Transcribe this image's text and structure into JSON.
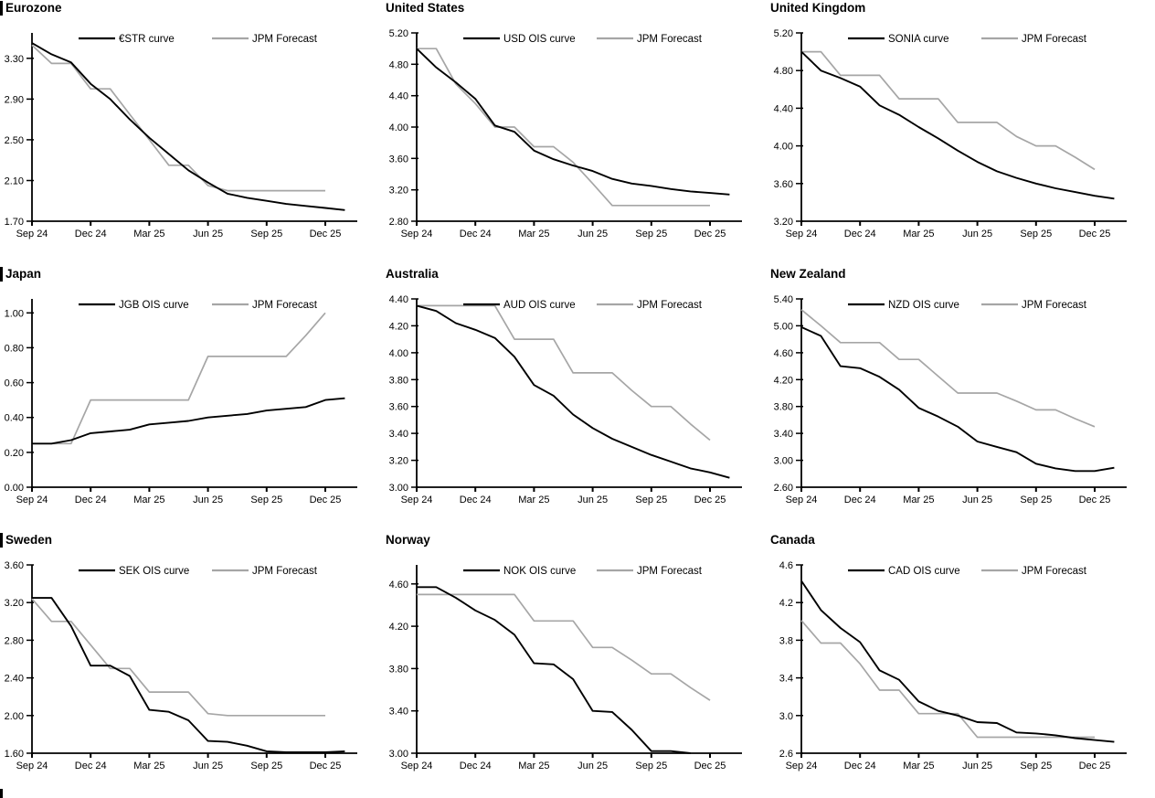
{
  "page": {
    "background": "#ffffff"
  },
  "colors": {
    "actual_line": "#000000",
    "forecast_line": "#a6a6a6",
    "axis": "#000000",
    "text": "#000000"
  },
  "x_months": [
    "Sep 24",
    "Oct 24",
    "Nov 24",
    "Dec 24",
    "Jan 25",
    "Feb 25",
    "Mar 25",
    "Apr 25",
    "May 25",
    "Jun 25",
    "Jul 25",
    "Aug 25",
    "Sep 25",
    "Oct 25",
    "Nov 25",
    "Dec 25",
    "Jan 26"
  ],
  "x_tick_labels": [
    "Sep 24",
    "Dec 24",
    "Mar 25",
    "Jun 25",
    "Sep 25",
    "Dec 25"
  ],
  "x_tick_months": [
    0,
    3,
    6,
    9,
    12,
    15
  ],
  "chart_data": [
    {
      "type": "line",
      "title": "Eurozone",
      "section_bar": true,
      "legend": [
        "€STR curve",
        "JPM Forecast"
      ],
      "y_tick_labels": [
        "3.30",
        "2.90",
        "2.50",
        "2.10",
        "1.70"
      ],
      "ylim": [
        1.7,
        3.55
      ],
      "series": [
        {
          "name": "€STR curve",
          "role": "actual",
          "values": [
            3.45,
            3.34,
            3.26,
            3.05,
            2.9,
            2.7,
            2.52,
            2.36,
            2.2,
            2.08,
            1.97,
            1.93,
            1.9,
            1.87,
            1.85,
            1.83,
            1.81
          ]
        },
        {
          "name": "JPM Forecast",
          "role": "forecast",
          "values": [
            3.43,
            3.25,
            3.25,
            3.0,
            3.0,
            2.75,
            2.5,
            2.25,
            2.25,
            2.05,
            2.0,
            2.0,
            2.0,
            2.0,
            2.0,
            2.0
          ]
        }
      ]
    },
    {
      "type": "line",
      "title": "United States",
      "section_bar": false,
      "legend": [
        "USD OIS curve",
        "JPM Forecast"
      ],
      "y_tick_labels": [
        "5.20",
        "4.80",
        "4.40",
        "4.00",
        "3.60",
        "3.20",
        "2.80"
      ],
      "ylim": [
        2.8,
        5.2
      ],
      "series": [
        {
          "name": "USD OIS curve",
          "role": "actual",
          "values": [
            5.0,
            4.76,
            4.57,
            4.36,
            4.02,
            3.94,
            3.7,
            3.59,
            3.51,
            3.44,
            3.34,
            3.28,
            3.25,
            3.21,
            3.18,
            3.16,
            3.14
          ]
        },
        {
          "name": "JPM Forecast",
          "role": "forecast",
          "values": [
            5.0,
            5.0,
            4.55,
            4.3,
            4.0,
            4.0,
            3.75,
            3.75,
            3.55,
            3.28,
            3.0,
            3.0,
            3.0,
            3.0,
            3.0,
            3.0
          ]
        }
      ]
    },
    {
      "type": "line",
      "title": "United Kingdom",
      "section_bar": false,
      "legend": [
        "SONIA curve",
        "JPM Forecast"
      ],
      "y_tick_labels": [
        "5.20",
        "4.80",
        "4.40",
        "4.00",
        "3.60",
        "3.20"
      ],
      "ylim": [
        3.2,
        5.2
      ],
      "series": [
        {
          "name": "SONIA curve",
          "role": "actual",
          "values": [
            5.0,
            4.8,
            4.72,
            4.63,
            4.43,
            4.33,
            4.2,
            4.08,
            3.95,
            3.83,
            3.73,
            3.66,
            3.6,
            3.55,
            3.51,
            3.47,
            3.44
          ]
        },
        {
          "name": "JPM Forecast",
          "role": "forecast",
          "values": [
            5.0,
            5.0,
            4.75,
            4.75,
            4.75,
            4.5,
            4.5,
            4.5,
            4.25,
            4.25,
            4.25,
            4.1,
            4.0,
            4.0,
            3.88,
            3.75
          ]
        }
      ]
    },
    {
      "type": "line",
      "title": "Japan",
      "section_bar": true,
      "legend": [
        "JGB OIS curve",
        "JPM Forecast"
      ],
      "y_tick_labels": [
        "1.00",
        "0.80",
        "0.60",
        "0.40",
        "0.20",
        "0.00"
      ],
      "ylim": [
        0.0,
        1.08
      ],
      "series": [
        {
          "name": "JGB OIS curve",
          "role": "actual",
          "values": [
            0.25,
            0.25,
            0.27,
            0.31,
            0.32,
            0.33,
            0.36,
            0.37,
            0.38,
            0.4,
            0.41,
            0.42,
            0.44,
            0.45,
            0.46,
            0.5,
            0.51
          ]
        },
        {
          "name": "JPM Forecast",
          "role": "forecast",
          "values": [
            0.25,
            0.25,
            0.25,
            0.5,
            0.5,
            0.5,
            0.5,
            0.5,
            0.5,
            0.75,
            0.75,
            0.75,
            0.75,
            0.75,
            0.87,
            1.0
          ]
        }
      ]
    },
    {
      "type": "line",
      "title": "Australia",
      "section_bar": false,
      "legend": [
        "AUD OIS curve",
        "JPM Forecast"
      ],
      "y_tick_labels": [
        "4.40",
        "4.20",
        "4.00",
        "3.80",
        "3.60",
        "3.40",
        "3.20",
        "3.00"
      ],
      "ylim": [
        3.0,
        4.4
      ],
      "series": [
        {
          "name": "AUD OIS curve",
          "role": "actual",
          "values": [
            4.35,
            4.31,
            4.22,
            4.17,
            4.11,
            3.97,
            3.76,
            3.68,
            3.54,
            3.44,
            3.36,
            3.3,
            3.24,
            3.19,
            3.14,
            3.11,
            3.07
          ]
        },
        {
          "name": "JPM Forecast",
          "role": "forecast",
          "values": [
            4.35,
            4.35,
            4.35,
            4.35,
            4.35,
            4.1,
            4.1,
            4.1,
            3.85,
            3.85,
            3.85,
            3.72,
            3.6,
            3.6,
            3.47,
            3.35
          ]
        }
      ]
    },
    {
      "type": "line",
      "title": "New Zealand",
      "section_bar": false,
      "legend": [
        "NZD OIS curve",
        "JPM Forecast"
      ],
      "y_tick_labels": [
        "5.40",
        "5.00",
        "4.60",
        "4.20",
        "3.80",
        "3.40",
        "3.00",
        "2.60"
      ],
      "ylim": [
        2.6,
        5.4
      ],
      "series": [
        {
          "name": "NZD OIS curve",
          "role": "actual",
          "values": [
            4.98,
            4.85,
            4.4,
            4.37,
            4.24,
            4.05,
            3.78,
            3.65,
            3.5,
            3.28,
            3.2,
            3.12,
            2.95,
            2.88,
            2.84,
            2.84,
            2.89
          ]
        },
        {
          "name": "JPM Forecast",
          "role": "forecast",
          "values": [
            5.24,
            5.0,
            4.75,
            4.75,
            4.75,
            4.5,
            4.5,
            4.25,
            4.0,
            4.0,
            4.0,
            3.88,
            3.75,
            3.75,
            3.62,
            3.5
          ]
        }
      ]
    },
    {
      "type": "line",
      "title": "Sweden",
      "section_bar": true,
      "legend": [
        "SEK OIS curve",
        "JPM Forecast"
      ],
      "y_tick_labels": [
        "3.60",
        "3.20",
        "2.80",
        "2.40",
        "2.00",
        "1.60"
      ],
      "ylim": [
        1.6,
        3.6
      ],
      "series": [
        {
          "name": "SEK OIS curve",
          "role": "actual",
          "values": [
            3.25,
            3.25,
            2.95,
            2.53,
            2.53,
            2.42,
            2.06,
            2.04,
            1.95,
            1.73,
            1.72,
            1.68,
            1.62,
            1.61,
            1.61,
            1.61,
            1.62
          ]
        },
        {
          "name": "JPM Forecast",
          "role": "forecast",
          "values": [
            3.24,
            3.0,
            3.0,
            2.75,
            2.5,
            2.5,
            2.25,
            2.25,
            2.25,
            2.02,
            2.0,
            2.0,
            2.0,
            2.0,
            2.0,
            2.0
          ]
        }
      ]
    },
    {
      "type": "line",
      "title": "Norway",
      "section_bar": false,
      "legend": [
        "NOK OIS curve",
        "JPM Forecast"
      ],
      "y_tick_labels": [
        "4.60",
        "4.20",
        "3.80",
        "3.40",
        "3.00"
      ],
      "ylim": [
        3.0,
        4.78
      ],
      "series": [
        {
          "name": "NOK OIS curve",
          "role": "actual",
          "values": [
            4.57,
            4.57,
            4.47,
            4.35,
            4.26,
            4.12,
            3.85,
            3.84,
            3.7,
            3.4,
            3.39,
            3.22,
            3.02,
            3.02,
            3.0
          ]
        },
        {
          "name": "JPM Forecast",
          "role": "forecast",
          "values": [
            4.5,
            4.5,
            4.5,
            4.5,
            4.5,
            4.5,
            4.25,
            4.25,
            4.25,
            4.0,
            4.0,
            3.88,
            3.75,
            3.75,
            3.62,
            3.5
          ]
        }
      ]
    },
    {
      "type": "line",
      "title": "Canada",
      "section_bar": false,
      "legend": [
        "CAD OIS curve",
        "JPM Forecast"
      ],
      "y_tick_labels": [
        "4.6",
        "4.2",
        "3.8",
        "3.4",
        "3.0",
        "2.6"
      ],
      "ylim": [
        2.6,
        4.6
      ],
      "series": [
        {
          "name": "CAD OIS curve",
          "role": "actual",
          "values": [
            4.43,
            4.12,
            3.93,
            3.78,
            3.48,
            3.38,
            3.15,
            3.05,
            3.0,
            2.93,
            2.92,
            2.82,
            2.81,
            2.79,
            2.76,
            2.74,
            2.72
          ]
        },
        {
          "name": "JPM Forecast",
          "role": "forecast",
          "values": [
            4.01,
            3.77,
            3.77,
            3.55,
            3.27,
            3.27,
            3.02,
            3.02,
            3.02,
            2.77,
            2.77,
            2.77,
            2.77,
            2.77,
            2.77,
            2.77
          ]
        }
      ]
    }
  ]
}
